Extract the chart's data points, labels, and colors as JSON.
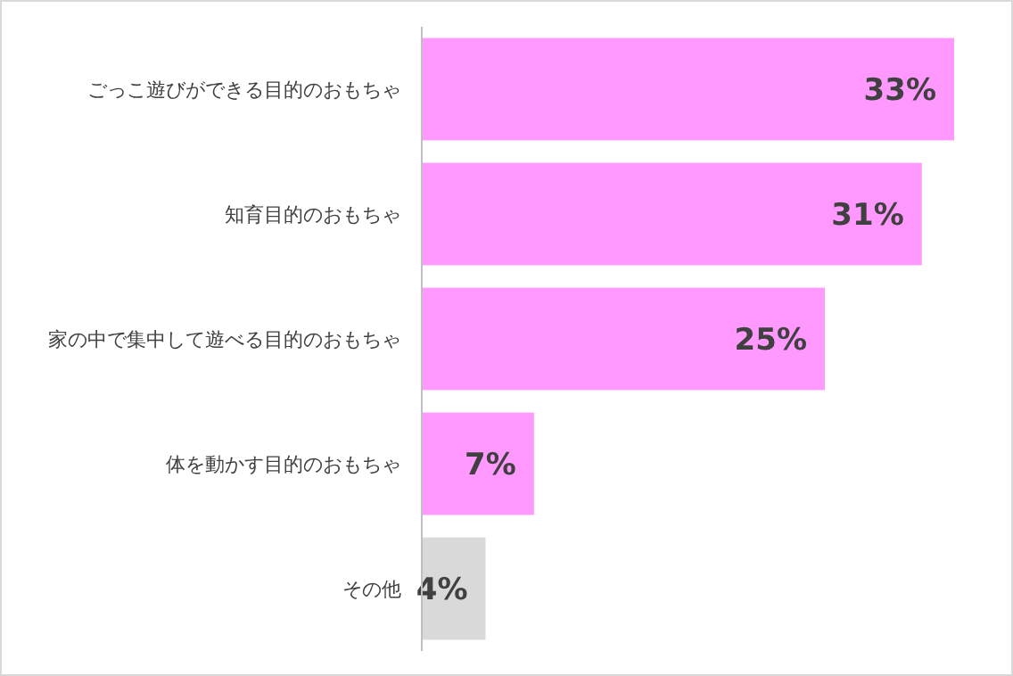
{
  "chart_data": {
    "type": "bar",
    "orientation": "horizontal",
    "categories": [
      "ごっこ遊びができる目的のおもちゃ",
      "知育目的のおもちゃ",
      "家の中で集中して遊べる目的のおもちゃ",
      "体を動かす目的のおもちゃ",
      "その他"
    ],
    "values": [
      33,
      31,
      25,
      7,
      4
    ],
    "colors": [
      "#ff99ff",
      "#ff99ff",
      "#ff99ff",
      "#ff99ff",
      "#d9d9d9"
    ],
    "value_labels": [
      "33%",
      "31%",
      "25%",
      "7%",
      "4%"
    ]
  }
}
